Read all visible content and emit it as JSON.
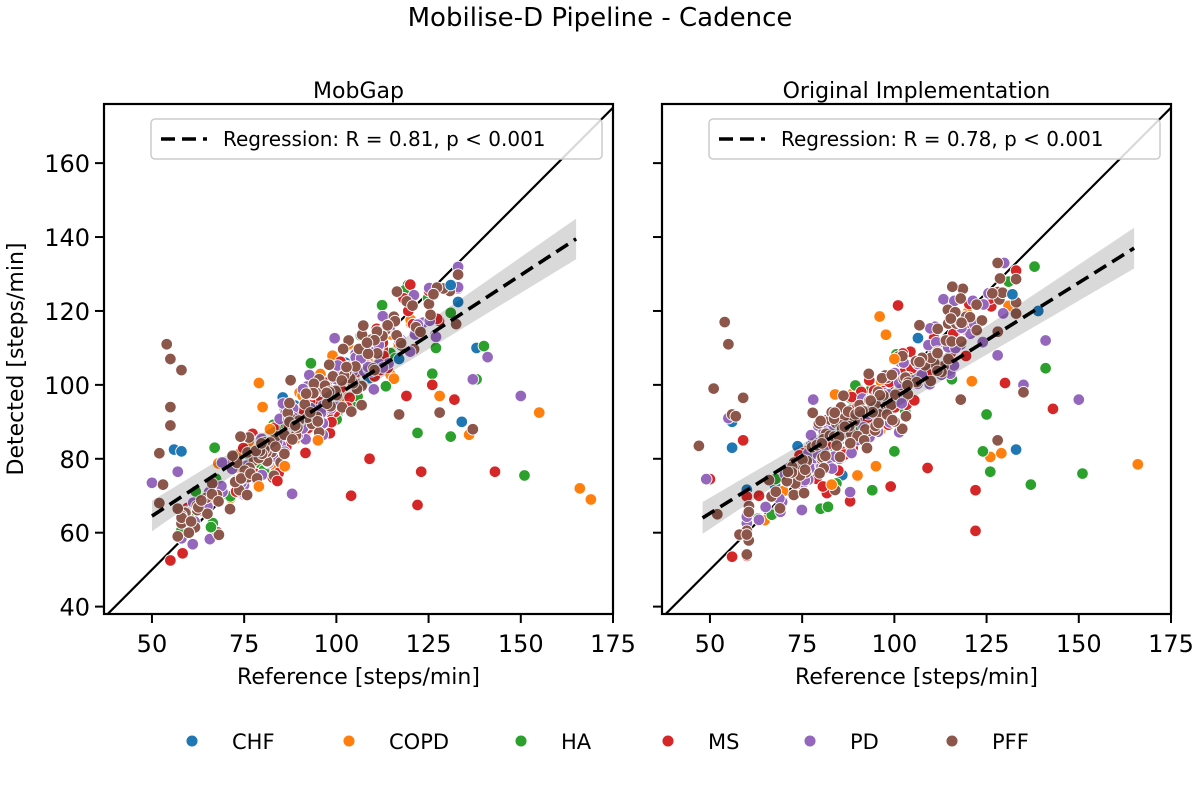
{
  "figure": {
    "suptitle": "Mobilise-D Pipeline - Cadence",
    "legend_groups": [
      {
        "name": "CHF",
        "color": "#1f77b4"
      },
      {
        "name": "COPD",
        "color": "#ff7f0e"
      },
      {
        "name": "HA",
        "color": "#2ca02c"
      },
      {
        "name": "MS",
        "color": "#d62728"
      },
      {
        "name": "PD",
        "color": "#9467bd"
      },
      {
        "name": "PFF",
        "color": "#8c564b"
      }
    ]
  },
  "chart_data": [
    {
      "type": "scatter",
      "title": "MobGap",
      "xlabel": "Reference [steps/min]",
      "ylabel": "Detected [steps/min]",
      "xlim": [
        37,
        175
      ],
      "ylim": [
        38,
        176
      ],
      "xticks": [
        50,
        75,
        100,
        125,
        150,
        175
      ],
      "yticks": [
        40,
        60,
        80,
        100,
        120,
        140,
        160
      ],
      "identity_line": true,
      "regression": {
        "label": "Regression: R = 0.81, p < 0.001",
        "x_start": 50,
        "x_end": 165,
        "y_start": 64.5,
        "y_end": 139.5,
        "ci_start": 2.3,
        "ci_end": 5.5
      },
      "legend_location": "upper-left",
      "cloud_params": {
        "x_mean": 93,
        "x_sd": 17,
        "x_min": 58,
        "x_max": 133,
        "slope": 0.9,
        "intercept": 9,
        "noise": 4.5,
        "n": 440,
        "seed": 11
      },
      "series": [
        {
          "name": "CHF",
          "points": [
            [
              56,
              82.5
            ],
            [
              58,
              82
            ],
            [
              131,
              127
            ],
            [
              134,
              90
            ],
            [
              138,
              110
            ],
            [
              117,
              107
            ]
          ]
        },
        {
          "name": "COPD",
          "points": [
            [
              79,
              100.5
            ],
            [
              80,
              94
            ],
            [
              82,
              88
            ],
            [
              95,
              85
            ],
            [
              86,
              78
            ],
            [
              128,
              97
            ],
            [
              136,
              86.5
            ],
            [
              155,
              92.5
            ],
            [
              166,
              72
            ],
            [
              169,
              69
            ],
            [
              79,
              72.5
            ]
          ]
        },
        {
          "name": "HA",
          "points": [
            [
              67,
              83
            ],
            [
              66,
              61.5
            ],
            [
              122,
              87
            ],
            [
              126,
              103
            ],
            [
              131,
              86
            ],
            [
              138,
              101.5
            ],
            [
              140,
              110.5
            ],
            [
              151,
              75.5
            ],
            [
              131,
              119.5
            ],
            [
              127,
              110
            ]
          ]
        },
        {
          "name": "MS",
          "points": [
            [
              55,
              52.5
            ],
            [
              104,
              70
            ],
            [
              109,
              80
            ],
            [
              122,
              67.5
            ],
            [
              123,
              76.5
            ],
            [
              143,
              76.5
            ],
            [
              132,
              96
            ],
            [
              119,
              97
            ],
            [
              126,
              100
            ],
            [
              84,
              74
            ]
          ]
        },
        {
          "name": "PD",
          "points": [
            [
              50,
              73.5
            ],
            [
              57,
              76.5
            ],
            [
              88,
              70.5
            ],
            [
              120,
              109
            ],
            [
              127,
              113
            ],
            [
              141,
              107.5
            ],
            [
              150,
              97
            ],
            [
              137,
              101.5
            ],
            [
              69,
              79
            ]
          ]
        },
        {
          "name": "PFF",
          "points": [
            [
              53,
              73
            ],
            [
              54,
              111
            ],
            [
              55,
              107
            ],
            [
              55,
              94
            ],
            [
              55,
              89
            ],
            [
              52,
              81.5
            ],
            [
              58,
              104
            ],
            [
              52,
              68
            ],
            [
              57,
              66.5
            ],
            [
              57,
              59
            ],
            [
              60,
              60
            ],
            [
              128,
              92.5
            ],
            [
              137,
              88
            ],
            [
              74,
              86
            ],
            [
              117,
              92
            ]
          ]
        }
      ]
    },
    {
      "type": "scatter",
      "title": "Original Implementation",
      "xlabel": "Reference [steps/min]",
      "ylabel": "",
      "xlim": [
        37,
        175
      ],
      "ylim": [
        38,
        176
      ],
      "xticks": [
        50,
        75,
        100,
        125,
        150,
        175
      ],
      "yticks": [
        40,
        60,
        80,
        100,
        120,
        140,
        160
      ],
      "identity_line": true,
      "regression": {
        "label": "Regression: R = 0.78, p < 0.001",
        "x_start": 48,
        "x_end": 165,
        "y_start": 64,
        "y_end": 137,
        "ci_start": 2.5,
        "ci_end": 5.5
      },
      "legend_location": "upper-left",
      "cloud_params": {
        "x_mean": 93,
        "x_sd": 17,
        "x_min": 60,
        "x_max": 133,
        "slope": 0.88,
        "intercept": 11,
        "noise": 4.8,
        "n": 440,
        "seed": 29
      },
      "series": [
        {
          "name": "CHF",
          "points": [
            [
              56,
              90
            ],
            [
              56,
              83
            ],
            [
              133,
              82.5
            ],
            [
              139,
              120
            ],
            [
              132,
              124.5
            ]
          ]
        },
        {
          "name": "COPD",
          "points": [
            [
              96,
              118.5
            ],
            [
              100,
              107
            ],
            [
              121,
              101
            ],
            [
              126,
              80.5
            ],
            [
              129,
              81.5
            ],
            [
              166,
              78.5
            ],
            [
              95,
              78
            ],
            [
              90,
              75.5
            ],
            [
              83,
              73
            ]
          ]
        },
        {
          "name": "HA",
          "points": [
            [
              80,
              66.5
            ],
            [
              82,
              67
            ],
            [
              94,
              71.5
            ],
            [
              124,
              82
            ],
            [
              126,
              76.5
            ],
            [
              137,
              73
            ],
            [
              141,
              104.5
            ],
            [
              151,
              76
            ],
            [
              138,
              132
            ],
            [
              125,
              92
            ],
            [
              100,
              82
            ]
          ]
        },
        {
          "name": "MS",
          "points": [
            [
              50,
              74.5
            ],
            [
              56,
              53.5
            ],
            [
              59,
              85
            ],
            [
              99,
              72.5
            ],
            [
              109,
              77.5
            ],
            [
              122,
              60.5
            ],
            [
              122,
              71.5
            ],
            [
              130,
              100.5
            ],
            [
              143,
              93.5
            ],
            [
              101,
              121.5
            ],
            [
              88,
              68.5
            ]
          ]
        },
        {
          "name": "PD",
          "points": [
            [
              49,
              74.5
            ],
            [
              55,
              91
            ],
            [
              78,
              96
            ],
            [
              88,
              71
            ],
            [
              141,
              112
            ],
            [
              150,
              96
            ],
            [
              128,
              108
            ],
            [
              135,
              100
            ],
            [
              102,
              95
            ]
          ]
        },
        {
          "name": "PFF",
          "points": [
            [
              47,
              83.5
            ],
            [
              51,
              99
            ],
            [
              54,
              117
            ],
            [
              55,
              111
            ],
            [
              56,
              92
            ],
            [
              57,
              91.5
            ],
            [
              58,
              59.5
            ],
            [
              60,
              59.5
            ],
            [
              59,
              96.5
            ],
            [
              52,
              65
            ],
            [
              128,
              133
            ],
            [
              128,
              85
            ],
            [
              135,
              98
            ],
            [
              118,
              96
            ]
          ]
        }
      ]
    }
  ]
}
